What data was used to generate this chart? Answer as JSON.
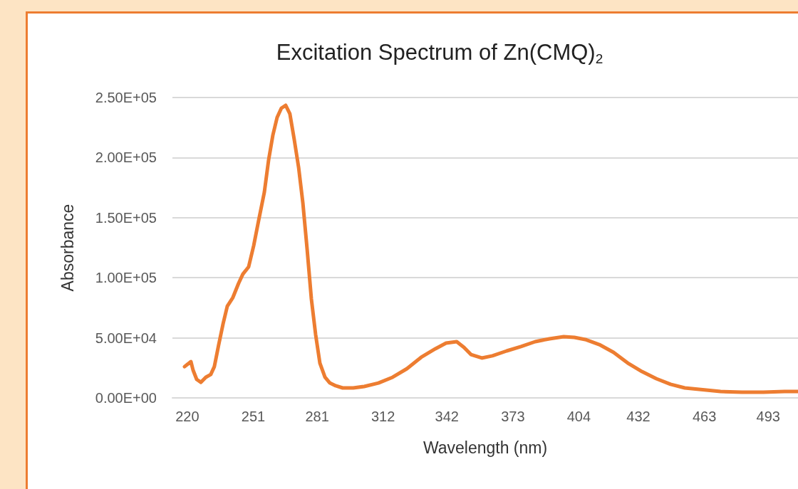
{
  "chart_data": {
    "type": "line",
    "title": "Excitation Spectrum of Zn(CMQ)$_{2}$",
    "xlabel": "Wavelength (nm)",
    "ylabel": "Absorbance",
    "x": [
      218.7,
      220,
      221.7,
      222.7,
      224.4,
      226.4,
      228.7,
      231,
      232.7,
      234.7,
      236.8,
      238.8,
      241.4,
      244.1,
      246.1,
      248.8,
      251.2,
      253.5,
      256.2,
      258.2,
      260.2,
      262.2,
      264.2,
      266.2,
      268.2,
      270.2,
      272.3,
      274.3,
      276.3,
      278.3,
      280.3,
      282.3,
      284.7,
      287,
      289.7,
      293,
      298,
      303.1,
      309.8,
      316.5,
      323.2,
      329.9,
      336.6,
      341.6,
      346.6,
      350,
      353.3,
      358.4,
      363.4,
      370.1,
      376.8,
      383.5,
      390.2,
      396.9,
      401.9,
      407,
      413.6,
      420.3,
      427,
      433.7,
      440.4,
      447.1,
      453.8,
      463.9,
      470.6,
      480.6,
      490.7,
      500.7,
      507
    ],
    "series": [
      {
        "color": "#ed7d31",
        "values": [
          26000,
          27800,
          30200,
          23100,
          15400,
          13000,
          17200,
          19500,
          26000,
          43800,
          61600,
          76400,
          83500,
          95400,
          103000,
          109000,
          126800,
          147500,
          171200,
          197900,
          218600,
          233400,
          241100,
          243500,
          236400,
          215600,
          191900,
          162300,
          123800,
          82300,
          52700,
          29000,
          17200,
          12400,
          10100,
          8300,
          8300,
          9500,
          12400,
          17200,
          24300,
          33800,
          40900,
          45600,
          46800,
          42100,
          36100,
          33200,
          35000,
          39100,
          42700,
          46800,
          49200,
          50900,
          50400,
          48600,
          44400,
          37900,
          29000,
          21900,
          16000,
          11300,
          8300,
          6500,
          5300,
          4700,
          4700,
          5300,
          5300
        ]
      }
    ],
    "xlim": [
      213,
      507
    ],
    "xticks": [
      220,
      251,
      281,
      312,
      342,
      373,
      404,
      432,
      463,
      493
    ],
    "ylim": [
      0,
      250000
    ],
    "yticks": [
      {
        "value": 0,
        "label": "0.00E+00"
      },
      {
        "value": 50000,
        "label": "5.00E+04"
      },
      {
        "value": 100000,
        "label": "1.00E+05"
      },
      {
        "value": 150000,
        "label": "1.50E+05"
      },
      {
        "value": 200000,
        "label": "2.00E+05"
      },
      {
        "value": 250000,
        "label": "2.50E+05"
      }
    ],
    "grid": "y",
    "marker": "none",
    "line_style": "solid"
  }
}
